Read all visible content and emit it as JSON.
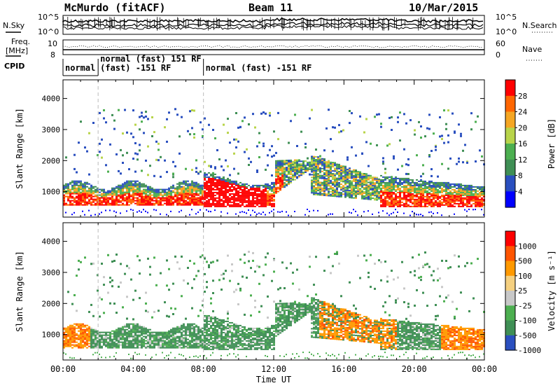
{
  "header": {
    "title": "McMurdo (fitACF)",
    "beam": "Beam 11",
    "date": "10/Mar/2015"
  },
  "panels": {
    "nsky": {
      "left_label": "N.Sky",
      "right_label": "N.Search",
      "left_ticks": [
        "10^5",
        "10^0"
      ],
      "right_ticks": [
        "10^5",
        "10^0"
      ]
    },
    "freq": {
      "left_label_1": "Freq.",
      "left_label_2": "[MHz]",
      "right_label": "Nave",
      "left_ticks": [
        "10",
        "8"
      ],
      "right_ticks": [
        "60",
        "0"
      ]
    },
    "cpid": {
      "label": "CPID",
      "segments": [
        {
          "start_hour": 0.0,
          "end_hour": 2.0,
          "line1": "normal",
          "line2": ""
        },
        {
          "start_hour": 2.0,
          "end_hour": 8.0,
          "line1": "normal (fast) 151 RF",
          "line2": "(fast) -151 RF"
        },
        {
          "start_hour": 8.0,
          "end_hour": 24.0,
          "line1": "normal (fast) -151 RF",
          "line2": ""
        }
      ]
    }
  },
  "chart_data": [
    {
      "type": "heatmap",
      "name": "power",
      "ylabel": "Slant Range [km]",
      "colorbar_label": "Power [dB]",
      "colorbar_ticks": [
        "28",
        "24",
        "20",
        "16",
        "12",
        "8",
        "4"
      ],
      "colors": [
        "#0000ff",
        "#2a4fbf",
        "#3f8f55",
        "#4caf50",
        "#b8d44a",
        "#f5a623",
        "#ff6600",
        "#ff0000"
      ],
      "yticks": [
        "1000",
        "2000",
        "3000",
        "4000"
      ],
      "ylim": [
        180,
        4600
      ],
      "xlim": [
        0,
        24
      ]
    },
    {
      "type": "heatmap",
      "name": "velocity",
      "ylabel": "Slant Range [km]",
      "xlabel": "Time UT",
      "colorbar_label": "Velocity [m s⁻¹]",
      "colorbar_ticks": [
        "1000",
        "500",
        "100",
        "25",
        "-25",
        "-100",
        "-500",
        "-1000"
      ],
      "colors": [
        "#2a4fbf",
        "#3f8f55",
        "#4caf50",
        "#c8c8c8",
        "#f5d080",
        "#ff9900",
        "#ff5500",
        "#ff0000"
      ],
      "yticks": [
        "1000",
        "2000",
        "3000",
        "4000"
      ],
      "xticks": [
        "00:00",
        "04:00",
        "08:00",
        "12:00",
        "16:00",
        "20:00",
        "00:00"
      ],
      "ylim": [
        180,
        4600
      ],
      "xlim": [
        0,
        24
      ]
    }
  ]
}
